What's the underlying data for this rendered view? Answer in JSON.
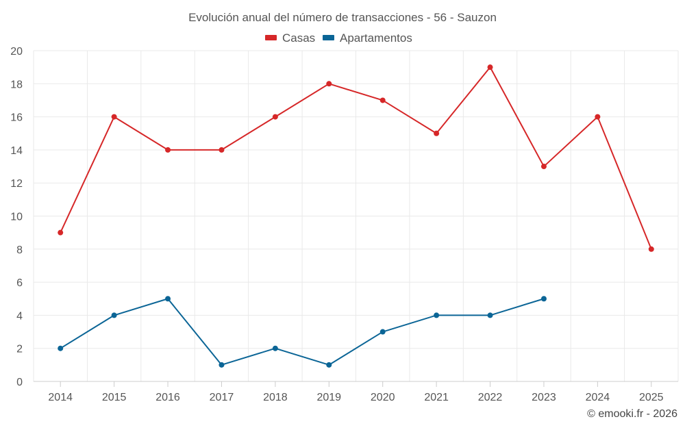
{
  "chart_data": {
    "type": "line",
    "title": "Evolución anual del número de transacciones - 56 - Sauzon",
    "categories": [
      "2014",
      "2015",
      "2016",
      "2017",
      "2018",
      "2019",
      "2020",
      "2021",
      "2022",
      "2023",
      "2024",
      "2025"
    ],
    "ylim": [
      0,
      20
    ],
    "yticks": [
      0,
      2,
      4,
      6,
      8,
      10,
      12,
      14,
      16,
      18,
      20
    ],
    "grid": true,
    "legend_position": "top-center",
    "series": [
      {
        "name": "Casas",
        "color": "#d62728",
        "values": [
          9,
          16,
          14,
          14,
          16,
          18,
          17,
          15,
          19,
          13,
          16,
          8
        ]
      },
      {
        "name": "Apartamentos",
        "color": "#0b6596",
        "values": [
          2,
          4,
          5,
          1,
          2,
          1,
          3,
          4,
          4,
          5,
          null,
          null
        ]
      }
    ]
  },
  "credit": "© emooki.fr - 2026"
}
